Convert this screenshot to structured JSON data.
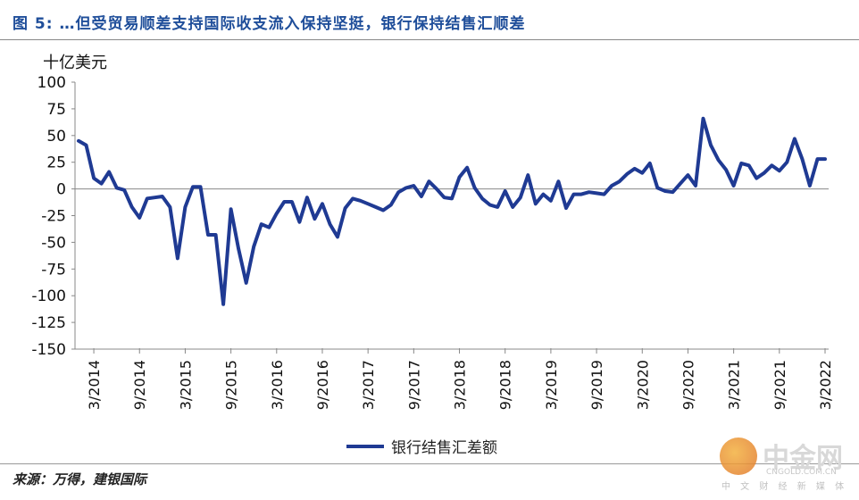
{
  "figure_title": "图 5: …但受贸易顺差支持国际收支流入保持坚挺，银行保持结售汇顺差",
  "unit": "十亿美元",
  "source": "来源：万得，建银国际",
  "watermark": {
    "main": "中金网",
    "url": "CNGOLD.COM.CN",
    "sub": "中 文 财 经 新 媒 体"
  },
  "colors": {
    "line": "#1F3A93",
    "title": "#1F4E9A"
  },
  "chart_data": {
    "type": "line",
    "title": "",
    "xlabel": "",
    "ylabel": "十亿美元",
    "ylim": [
      -150,
      100
    ],
    "yticks": [
      100,
      75,
      50,
      25,
      0,
      -25,
      -50,
      -75,
      -100,
      -125,
      -150
    ],
    "xticks": [
      "3/2014",
      "9/2014",
      "3/2015",
      "9/2015",
      "3/2016",
      "9/2016",
      "3/2017",
      "9/2017",
      "3/2018",
      "9/2018",
      "3/2019",
      "9/2019",
      "3/2020",
      "9/2020",
      "3/2021",
      "9/2021",
      "3/2022"
    ],
    "legend_position": "bottom-center",
    "grid": false,
    "series": [
      {
        "name": "银行结售汇差额",
        "x": [
          "2014-01",
          "2014-02",
          "2014-03",
          "2014-04",
          "2014-05",
          "2014-06",
          "2014-07",
          "2014-08",
          "2014-09",
          "2014-10",
          "2014-11",
          "2014-12",
          "2015-01",
          "2015-02",
          "2015-03",
          "2015-04",
          "2015-05",
          "2015-06",
          "2015-07",
          "2015-08",
          "2015-09",
          "2015-10",
          "2015-11",
          "2015-12",
          "2016-01",
          "2016-02",
          "2016-03",
          "2016-04",
          "2016-05",
          "2016-06",
          "2016-07",
          "2016-08",
          "2016-09",
          "2016-10",
          "2016-11",
          "2016-12",
          "2017-01",
          "2017-02",
          "2017-03",
          "2017-04",
          "2017-05",
          "2017-06",
          "2017-07",
          "2017-08",
          "2017-09",
          "2017-10",
          "2017-11",
          "2017-12",
          "2018-01",
          "2018-02",
          "2018-03",
          "2018-04",
          "2018-05",
          "2018-06",
          "2018-07",
          "2018-08",
          "2018-09",
          "2018-10",
          "2018-11",
          "2018-12",
          "2019-01",
          "2019-02",
          "2019-03",
          "2019-04",
          "2019-05",
          "2019-06",
          "2019-07",
          "2019-08",
          "2019-09",
          "2019-10",
          "2019-11",
          "2019-12",
          "2020-01",
          "2020-02",
          "2020-03",
          "2020-04",
          "2020-05",
          "2020-06",
          "2020-07",
          "2020-08",
          "2020-09",
          "2020-10",
          "2020-11",
          "2020-12",
          "2021-01",
          "2021-02",
          "2021-03",
          "2021-04",
          "2021-05",
          "2021-06",
          "2021-07",
          "2021-08",
          "2021-09",
          "2021-10",
          "2021-11",
          "2021-12",
          "2022-01",
          "2022-02",
          "2022-03"
        ],
        "values": [
          45,
          41,
          10,
          5,
          16,
          1,
          -1,
          -17,
          -27,
          -9,
          -8,
          -7,
          -17,
          -65,
          -17,
          2,
          2,
          -43,
          -43,
          -108,
          -19,
          -56,
          -88,
          -54,
          -33,
          -36,
          -23,
          -12,
          -12,
          -31,
          -8,
          -28,
          -14,
          -33,
          -45,
          -18,
          -9,
          -11,
          -14,
          -17,
          -20,
          -15,
          -3,
          1,
          3,
          -7,
          7,
          0,
          -8,
          -9,
          11,
          20,
          1,
          -9,
          -15,
          -17,
          -2,
          -17,
          -8,
          13,
          -14,
          -5,
          -11,
          7,
          -18,
          -5,
          -5,
          -3,
          -4,
          -5,
          3,
          7,
          14,
          19,
          15,
          24,
          1,
          -2,
          -3,
          5,
          13,
          3,
          66,
          41,
          27,
          18,
          3,
          24,
          22,
          10,
          15,
          22,
          17,
          25,
          47,
          28,
          3,
          28,
          28
        ]
      }
    ]
  }
}
